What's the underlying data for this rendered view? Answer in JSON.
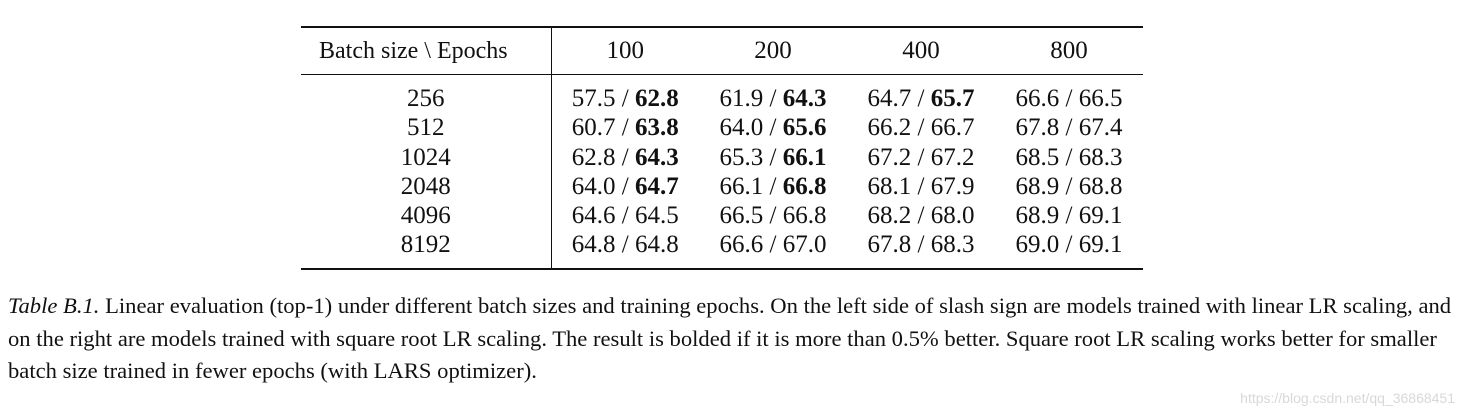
{
  "table": {
    "corner_label": "Batch size \\  Epochs",
    "epochs": [
      "100",
      "200",
      "400",
      "800"
    ],
    "rows": [
      {
        "batch": "256",
        "cells": [
          {
            "left": "57.5",
            "sep": " / ",
            "right": "62.8",
            "bold_right": true
          },
          {
            "left": "61.9",
            "sep": " / ",
            "right": "64.3",
            "bold_right": true
          },
          {
            "left": "64.7",
            "sep": " / ",
            "right": "65.7",
            "bold_right": true
          },
          {
            "left": "66.6",
            "sep": " / ",
            "right": "66.5",
            "bold_right": false
          }
        ]
      },
      {
        "batch": "512",
        "cells": [
          {
            "left": "60.7",
            "sep": " / ",
            "right": "63.8",
            "bold_right": true
          },
          {
            "left": "64.0",
            "sep": " / ",
            "right": "65.6",
            "bold_right": true
          },
          {
            "left": "66.2",
            "sep": " / ",
            "right": "66.7",
            "bold_right": false
          },
          {
            "left": "67.8",
            "sep": " / ",
            "right": "67.4",
            "bold_right": false
          }
        ]
      },
      {
        "batch": "1024",
        "cells": [
          {
            "left": "62.8",
            "sep": " / ",
            "right": "64.3",
            "bold_right": true
          },
          {
            "left": "65.3",
            "sep": " / ",
            "right": "66.1",
            "bold_right": true
          },
          {
            "left": "67.2",
            "sep": " / ",
            "right": "67.2",
            "bold_right": false
          },
          {
            "left": "68.5",
            "sep": " / ",
            "right": "68.3",
            "bold_right": false
          }
        ]
      },
      {
        "batch": "2048",
        "cells": [
          {
            "left": "64.0",
            "sep": " / ",
            "right": "64.7",
            "bold_right": true
          },
          {
            "left": "66.1",
            "sep": " / ",
            "right": "66.8",
            "bold_right": true
          },
          {
            "left": "68.1",
            "sep": " / ",
            "right": "67.9",
            "bold_right": false
          },
          {
            "left": "68.9",
            "sep": " / ",
            "right": "68.8",
            "bold_right": false
          }
        ]
      },
      {
        "batch": "4096",
        "cells": [
          {
            "left": "64.6",
            "sep": " / ",
            "right": "64.5",
            "bold_right": false
          },
          {
            "left": "66.5",
            "sep": " / ",
            "right": "66.8",
            "bold_right": false
          },
          {
            "left": "68.2",
            "sep": " / ",
            "right": "68.0",
            "bold_right": false
          },
          {
            "left": "68.9",
            "sep": " / ",
            "right": "69.1",
            "bold_right": false
          }
        ]
      },
      {
        "batch": "8192",
        "cells": [
          {
            "left": "64.8",
            "sep": " / ",
            "right": "64.8",
            "bold_right": false
          },
          {
            "left": "66.6",
            "sep": " / ",
            "right": "67.0",
            "bold_right": false
          },
          {
            "left": "67.8",
            "sep": " / ",
            "right": "68.3",
            "bold_right": false
          },
          {
            "left": "69.0",
            "sep": " / ",
            "right": "69.1",
            "bold_right": false
          }
        ]
      }
    ]
  },
  "caption": {
    "label": "Table B.1.",
    "text": " Linear evaluation (top-1) under different batch sizes and training epochs. On the left side of slash sign are models trained with linear LR scaling, and on the right are models trained with square root LR scaling. The result is bolded if it is more than 0.5% better. Square root LR scaling works better for smaller batch size trained in fewer epochs (with LARS optimizer)."
  },
  "watermark": "https://blog.csdn.net/qq_36868451"
}
